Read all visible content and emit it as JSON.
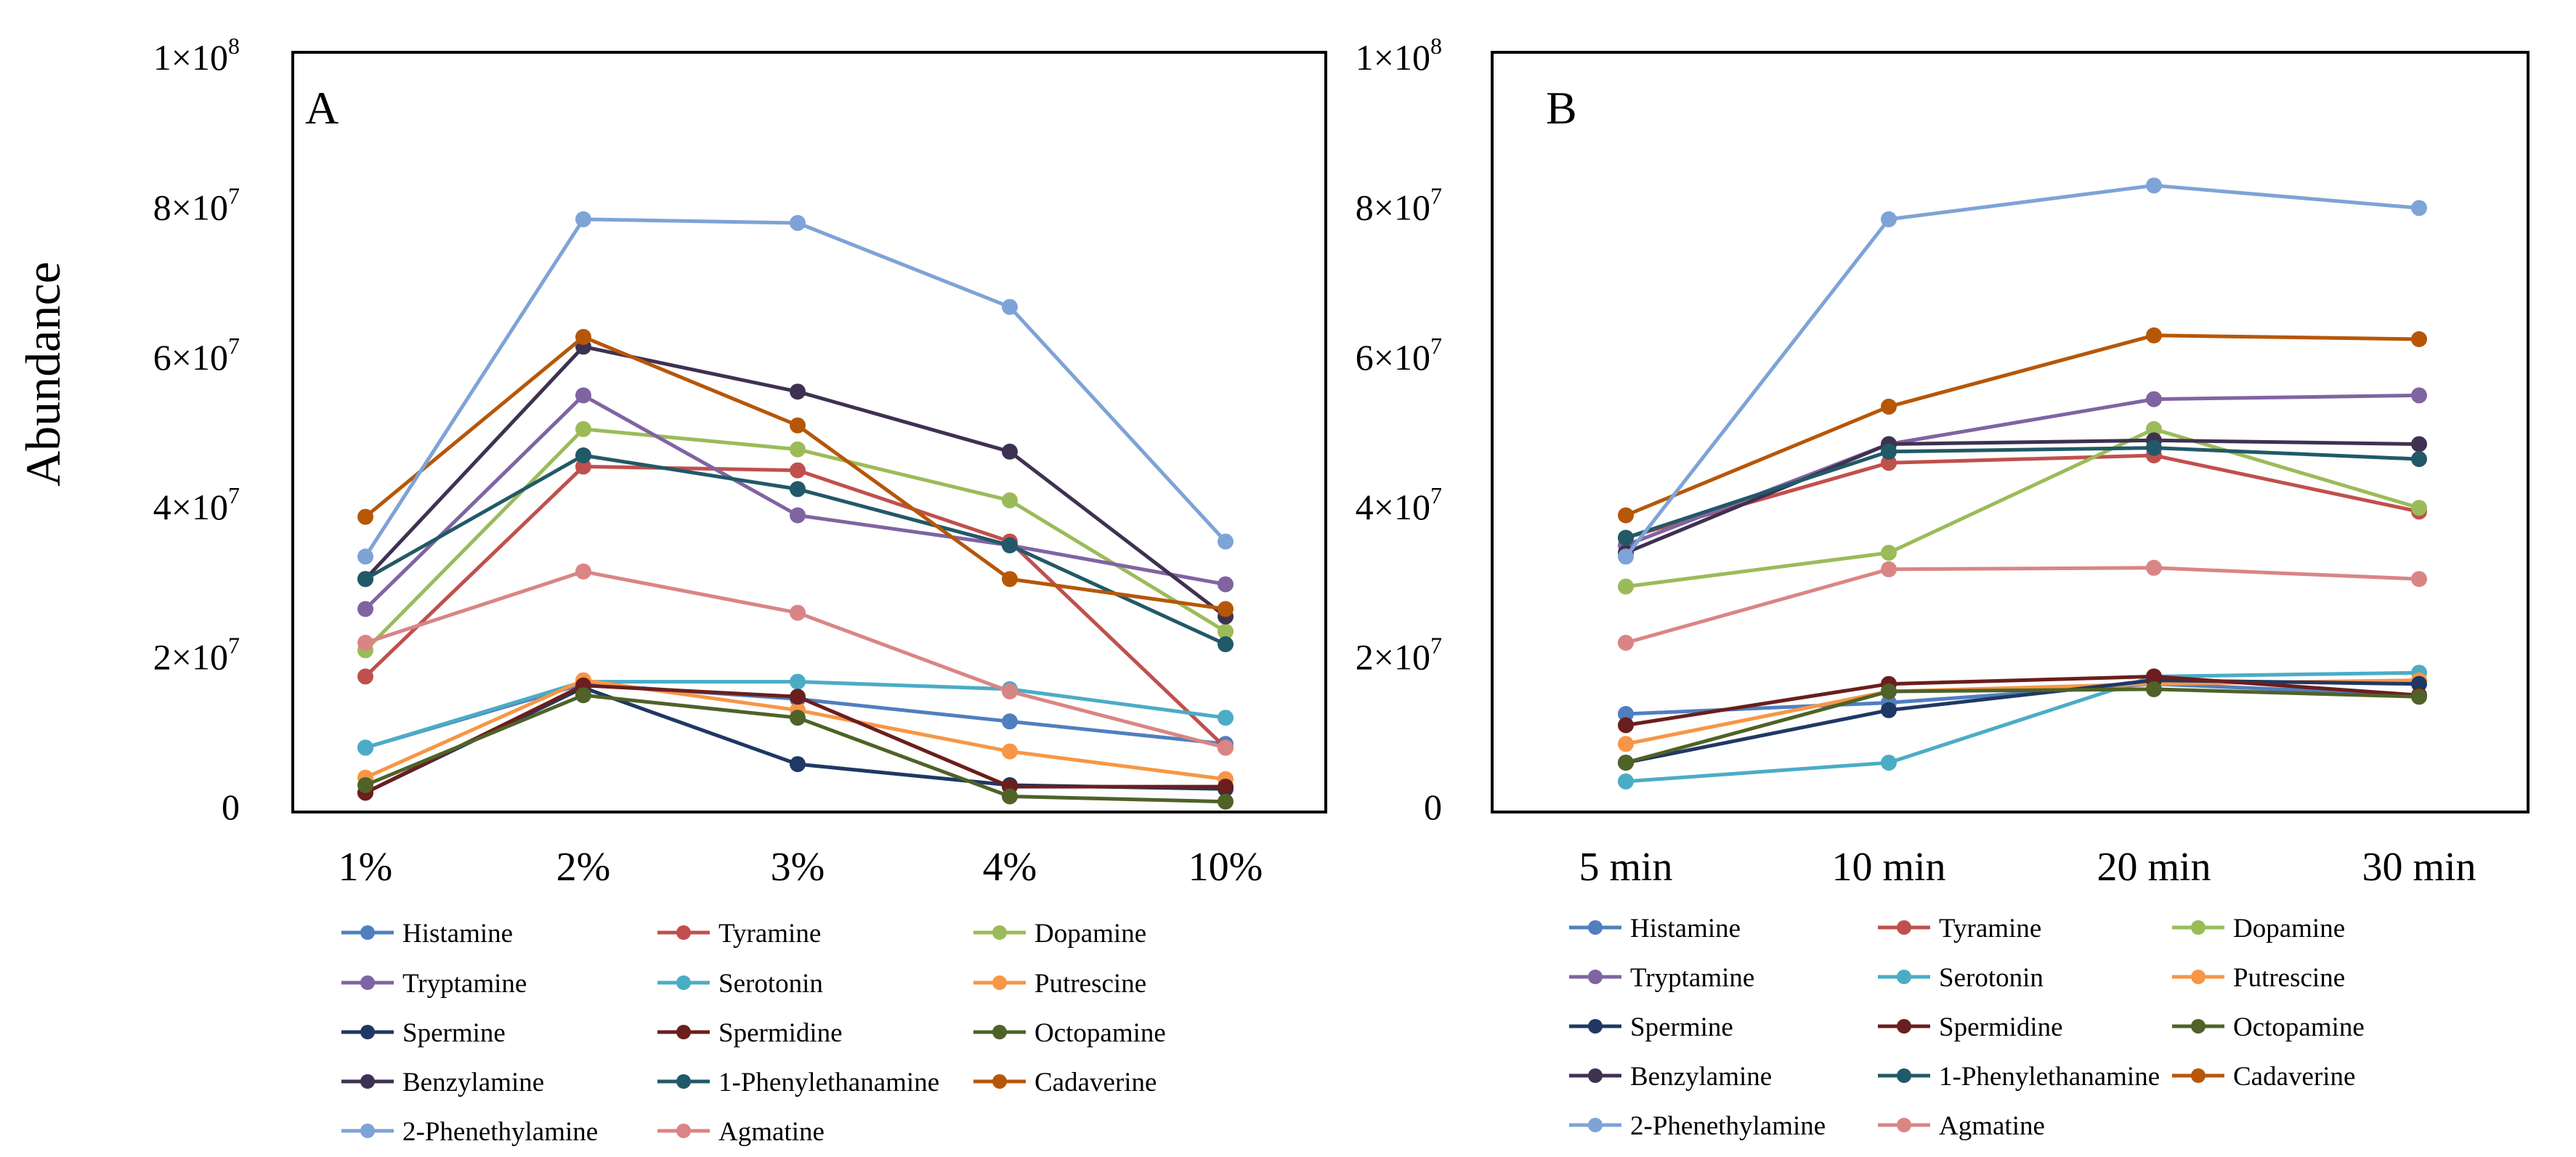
{
  "ylabel": "Abundance",
  "series_names": [
    "Histamine",
    "Tyramine",
    "Dopamine",
    "Tryptamine",
    "Serotonin",
    "Putrescine",
    "Spermine",
    "Spermidine",
    "Octopamine",
    "Benzylamine",
    "1-Phenylethanamine",
    "Cadaverine",
    "2-Phenethylamine",
    "Agmatine"
  ],
  "series_colors": [
    "#4F7FBF",
    "#C0504D",
    "#9BBB59",
    "#8064A2",
    "#4BACC6",
    "#F79646",
    "#1F3864",
    "#6B1E1E",
    "#4F6228",
    "#3F3151",
    "#215968",
    "#B65708",
    "#7EA3D6",
    "#D98585"
  ],
  "chart_data": [
    {
      "type": "line",
      "panel": "A",
      "categories": [
        "1%",
        "2%",
        "3%",
        "4%",
        "10%"
      ],
      "ylim": [
        0,
        100000000
      ],
      "yticks": [
        0,
        20000000,
        40000000,
        60000000,
        80000000,
        100000000
      ],
      "ytick_labels": [
        {
          "mant": "0",
          "exp": ""
        },
        {
          "mant": "2×10",
          "exp": "7"
        },
        {
          "mant": "4×10",
          "exp": "7"
        },
        {
          "mant": "6×10",
          "exp": "7"
        },
        {
          "mant": "8×10",
          "exp": "7"
        },
        {
          "mant": "1×10",
          "exp": "8"
        }
      ],
      "series": [
        {
          "name": "Histamine",
          "values": [
            8000000,
            16500000,
            14500000,
            11500000,
            8500000
          ]
        },
        {
          "name": "Tyramine",
          "values": [
            17500000,
            45500000,
            45000000,
            35500000,
            8000000
          ]
        },
        {
          "name": "Dopamine",
          "values": [
            21000000,
            50500000,
            47800000,
            41000000,
            23500000
          ]
        },
        {
          "name": "Tryptamine",
          "values": [
            26500000,
            55000000,
            39000000,
            35000000,
            29800000
          ]
        },
        {
          "name": "Serotonin",
          "values": [
            8000000,
            16800000,
            16800000,
            15800000,
            12000000
          ]
        },
        {
          "name": "Putrescine",
          "values": [
            4000000,
            17000000,
            13000000,
            7500000,
            3800000
          ]
        },
        {
          "name": "Spermine",
          "values": [
            2000000,
            16000000,
            5800000,
            3000000,
            2500000
          ]
        },
        {
          "name": "Spermidine",
          "values": [
            2000000,
            16300000,
            14800000,
            2800000,
            2800000
          ]
        },
        {
          "name": "Octopamine",
          "values": [
            3000000,
            15000000,
            12000000,
            1500000,
            800000
          ]
        },
        {
          "name": "Benzylamine",
          "values": [
            30500000,
            61500000,
            55500000,
            47500000,
            25500000
          ]
        },
        {
          "name": "1-Phenylethanamine",
          "values": [
            30500000,
            47000000,
            42500000,
            35000000,
            21800000
          ]
        },
        {
          "name": "Cadaverine",
          "values": [
            38800000,
            62800000,
            51000000,
            30500000,
            26500000
          ]
        },
        {
          "name": "2-Phenethylamine",
          "values": [
            33500000,
            78500000,
            78000000,
            66800000,
            35500000
          ]
        },
        {
          "name": "Agmatine",
          "values": [
            22000000,
            31500000,
            26000000,
            15500000,
            8000000
          ]
        }
      ]
    },
    {
      "type": "line",
      "panel": "B",
      "categories": [
        "5 min",
        "10 min",
        "20 min",
        "30 min"
      ],
      "ylim": [
        0,
        100000000
      ],
      "yticks": [
        0,
        20000000,
        40000000,
        60000000,
        80000000,
        100000000
      ],
      "ytick_labels": [
        {
          "mant": "0",
          "exp": ""
        },
        {
          "mant": "2×10",
          "exp": "7"
        },
        {
          "mant": "4×10",
          "exp": "7"
        },
        {
          "mant": "6×10",
          "exp": "7"
        },
        {
          "mant": "8×10",
          "exp": "7"
        },
        {
          "mant": "1×10",
          "exp": "8"
        }
      ],
      "series": [
        {
          "name": "Histamine",
          "values": [
            12500000,
            14000000,
            16500000,
            15000000
          ]
        },
        {
          "name": "Tyramine",
          "values": [
            36000000,
            46000000,
            47000000,
            39500000
          ]
        },
        {
          "name": "Dopamine",
          "values": [
            29500000,
            34000000,
            50500000,
            40000000
          ]
        },
        {
          "name": "Tryptamine",
          "values": [
            35000000,
            48500000,
            54500000,
            55000000
          ]
        },
        {
          "name": "Serotonin",
          "values": [
            3500000,
            6000000,
            17500000,
            18000000
          ]
        },
        {
          "name": "Putrescine",
          "values": [
            8500000,
            15500000,
            16500000,
            17000000
          ]
        },
        {
          "name": "Spermine",
          "values": [
            6000000,
            13000000,
            17000000,
            16500000
          ]
        },
        {
          "name": "Spermidine",
          "values": [
            11000000,
            16500000,
            17500000,
            15000000
          ]
        },
        {
          "name": "Octopamine",
          "values": [
            6000000,
            15500000,
            15800000,
            14800000
          ]
        },
        {
          "name": "Benzylamine",
          "values": [
            34000000,
            48500000,
            49000000,
            48500000
          ]
        },
        {
          "name": "1-Phenylethanamine",
          "values": [
            36000000,
            47500000,
            48000000,
            46500000
          ]
        },
        {
          "name": "Cadaverine",
          "values": [
            39000000,
            53500000,
            63000000,
            62500000
          ]
        },
        {
          "name": "2-Phenethylamine",
          "values": [
            33500000,
            78500000,
            83000000,
            80000000
          ]
        },
        {
          "name": "Agmatine",
          "values": [
            22000000,
            31800000,
            32000000,
            30500000
          ]
        }
      ]
    }
  ]
}
